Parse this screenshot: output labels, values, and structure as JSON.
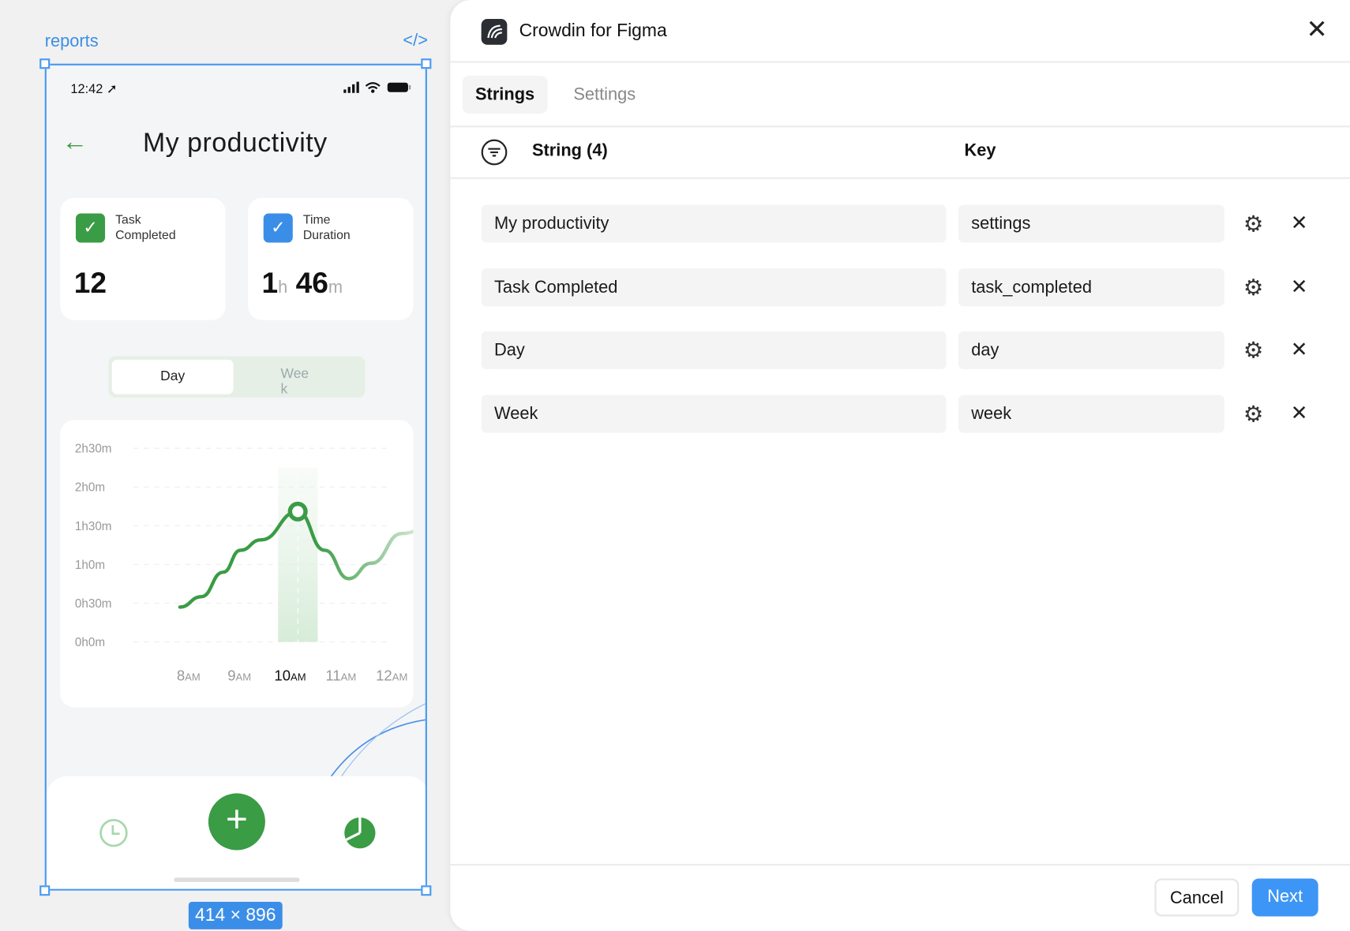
{
  "canvas": {
    "frame_label": "reports",
    "frame_size": "414 × 896"
  },
  "phone": {
    "status_time": "12:42",
    "title": "My productivity",
    "cards": [
      {
        "label_line1": "Task",
        "label_line2": "Completed",
        "value": "12",
        "color": "#3a9c45"
      },
      {
        "label_line1": "Time",
        "label_line2": "Duration",
        "hours": "1",
        "hours_unit": "h",
        "minutes": "46",
        "minutes_unit": "m",
        "color": "#3b8ee8"
      }
    ],
    "segment": {
      "day": "Day",
      "week_line1": "Wee",
      "week_line2": "k"
    }
  },
  "chart_data": {
    "type": "line",
    "y_ticks": [
      "0h0m",
      "0h30m",
      "1h0m",
      "1h30m",
      "2h0m",
      "2h30m"
    ],
    "ylim_minutes": [
      0,
      150
    ],
    "x_ticks": [
      {
        "n": "8",
        "s": "AM"
      },
      {
        "n": "9",
        "s": "AM"
      },
      {
        "n": "10",
        "s": "AM"
      },
      {
        "n": "11",
        "s": "AM"
      },
      {
        "n": "12",
        "s": "AM"
      }
    ],
    "selected_x": "10AM",
    "grid": true,
    "points": [
      [
        7.83,
        27
      ],
      [
        8.25,
        35
      ],
      [
        8.68,
        54
      ],
      [
        9.02,
        71
      ],
      [
        9.42,
        79
      ],
      [
        10.15,
        101
      ],
      [
        10.68,
        71
      ],
      [
        11.15,
        49
      ],
      [
        11.6,
        61
      ],
      [
        12.2,
        84
      ],
      [
        12.7,
        88
      ]
    ],
    "color": "#3a9c45"
  },
  "panel": {
    "title": "Crowdin for Figma",
    "tabs": [
      {
        "label": "Strings"
      },
      {
        "label": "Settings"
      }
    ],
    "columns": {
      "string": "String (4)",
      "key": "Key"
    },
    "rows": [
      {
        "string": "My productivity",
        "key": "settings"
      },
      {
        "string": "Task Completed",
        "key": "task_completed"
      },
      {
        "string": "Day",
        "key": "day"
      },
      {
        "string": "Week",
        "key": "week"
      }
    ],
    "cancel": "Cancel",
    "next": "Next",
    "accent": "#3d96f5"
  }
}
